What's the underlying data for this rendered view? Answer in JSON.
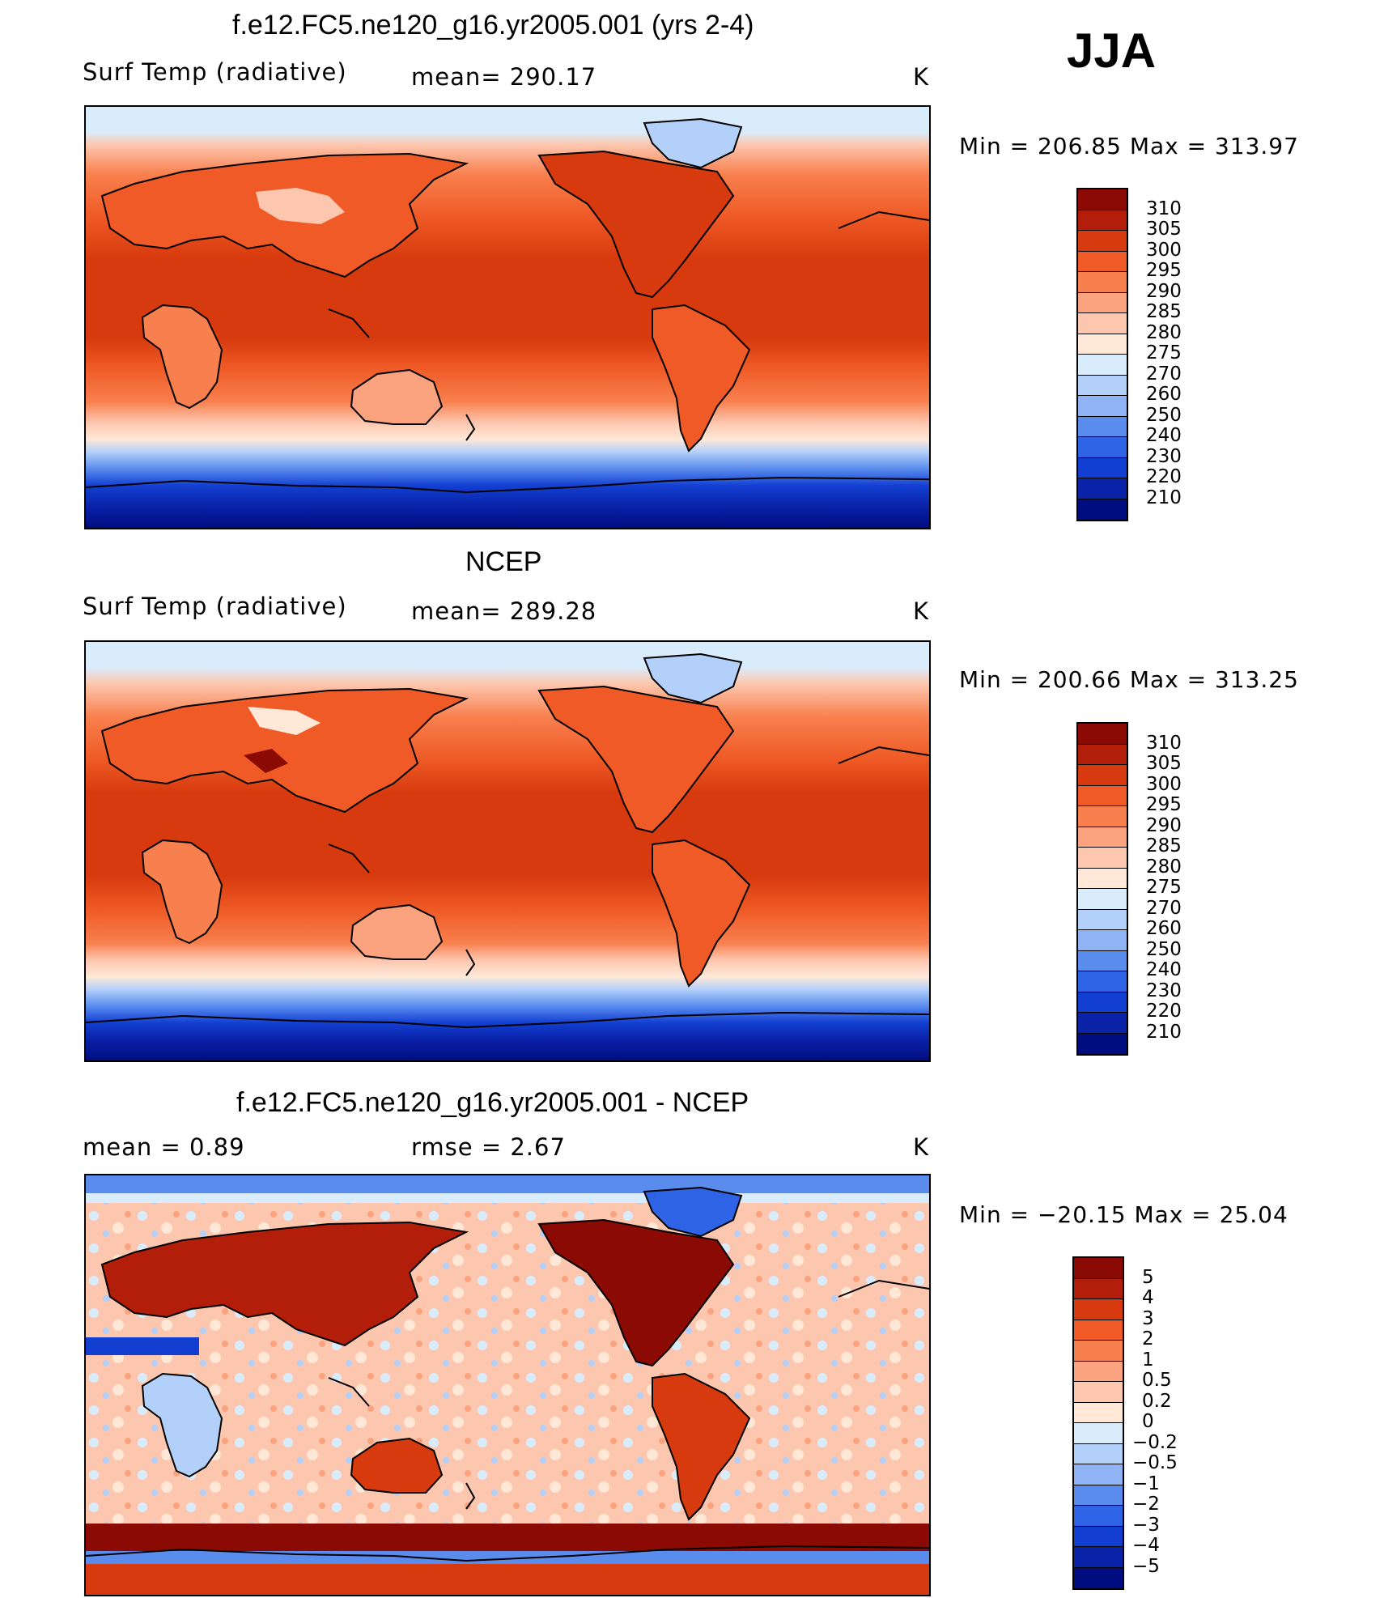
{
  "season": "JJA",
  "units": "K",
  "panels": [
    {
      "title": "f.e12.FC5.ne120_g16.yr2005.001 (yrs 2-4)",
      "left_label": "Surf Temp (radiative)",
      "stat": "mean= 290.17",
      "units": "K",
      "minmax": "Min  =  206.85  Max  =  313.97",
      "colorbar_labels": [
        "310",
        "305",
        "300",
        "295",
        "290",
        "285",
        "280",
        "275",
        "270",
        "260",
        "250",
        "240",
        "230",
        "220",
        "210"
      ],
      "colorbar_colors": [
        "#8b0a04",
        "#b31e0a",
        "#d73a0e",
        "#ef5a26",
        "#f8804e",
        "#fba37e",
        "#fdc6ae",
        "#ffe8d8",
        "#d9ecfc",
        "#b3d0fa",
        "#8fb3f5",
        "#5a8cee",
        "#2f63e5",
        "#123fd2",
        "#0a22a8",
        "#000d80"
      ]
    },
    {
      "title": "NCEP",
      "left_label": "Surf Temp (radiative)",
      "stat": "mean= 289.28",
      "units": "K",
      "minmax": "Min  =  200.66  Max  =  313.25",
      "colorbar_labels": [
        "310",
        "305",
        "300",
        "295",
        "290",
        "285",
        "280",
        "275",
        "270",
        "260",
        "250",
        "240",
        "230",
        "220",
        "210"
      ],
      "colorbar_colors": [
        "#8b0a04",
        "#b31e0a",
        "#d73a0e",
        "#ef5a26",
        "#f8804e",
        "#fba37e",
        "#fdc6ae",
        "#ffe8d8",
        "#d9ecfc",
        "#b3d0fa",
        "#8fb3f5",
        "#5a8cee",
        "#2f63e5",
        "#123fd2",
        "#0a22a8",
        "#000d80"
      ]
    },
    {
      "title": "f.e12.FC5.ne120_g16.yr2005.001 - NCEP",
      "left_label": "mean =     0.89",
      "stat": "rmse  =     2.67",
      "units": "K",
      "minmax": "Min  =  −20.15  Max  =    25.04",
      "colorbar_labels": [
        "5",
        "4",
        "3",
        "2",
        "1",
        "0.5",
        "0.2",
        "0",
        "−0.2",
        "−0.5",
        "−1",
        "−2",
        "−3",
        "−4",
        "−5"
      ],
      "colorbar_colors": [
        "#8b0a04",
        "#b31e0a",
        "#d73a0e",
        "#ef5a26",
        "#f8804e",
        "#fba37e",
        "#fdc6ae",
        "#ffe8d8",
        "#d9ecfc",
        "#b3d0fa",
        "#8fb3f5",
        "#5a8cee",
        "#2f63e5",
        "#123fd2",
        "#0a22a8",
        "#000d80"
      ]
    }
  ]
}
